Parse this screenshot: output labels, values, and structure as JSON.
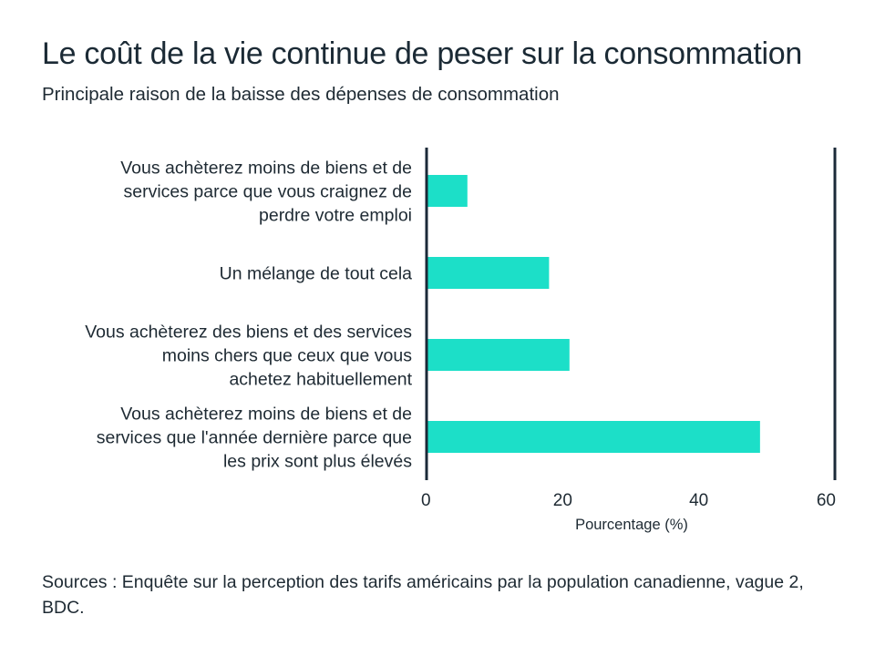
{
  "header": {
    "title": "Le coût de la vie continue de peser sur la consommation",
    "subtitle": "Principale raison de la baisse des dépenses de consommation"
  },
  "footer": {
    "source": "Sources : Enquête sur la perception des tarifs américains par la population canadienne, vague 2, BDC."
  },
  "colors": {
    "bar": "#1cdfc8",
    "axis": "#1b2a38",
    "text": "#1e2a33"
  },
  "chart_data": {
    "type": "bar",
    "orientation": "horizontal",
    "title": "Le coût de la vie continue de peser sur la consommation",
    "subtitle": "Principale raison de la baisse des dépenses de consommation",
    "categories": [
      [
        "Vous achèterez moins de biens et de",
        "services parce que vous craignez de",
        "perdre votre emploi"
      ],
      [
        "Un mélange de tout cela"
      ],
      [
        "Vous achèterez des biens et des services",
        "moins chers que ceux que vous",
        "achetez habituellement"
      ],
      [
        "Vous achèterez moins de biens et de",
        "services que l'année dernière parce que",
        "les prix sont plus élevés"
      ]
    ],
    "values": [
      6,
      18,
      21,
      49
    ],
    "xlabel": "Pourcentage (%)",
    "ylabel": "",
    "xlim": [
      0,
      60
    ],
    "xticks": [
      0,
      20,
      40,
      60
    ],
    "xtick_labels": [
      "0",
      "20",
      "40",
      "60"
    ],
    "grid": false,
    "legend": "none"
  }
}
